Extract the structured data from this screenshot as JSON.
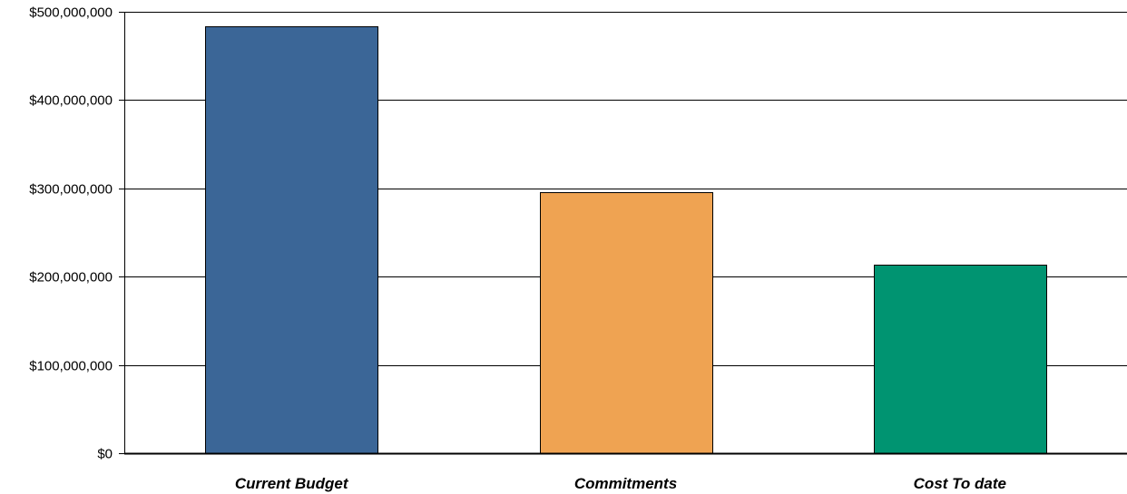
{
  "chart_data": {
    "type": "bar",
    "categories": [
      "Current Budget",
      "Commitments",
      "Cost To date"
    ],
    "values": [
      484000000,
      296000000,
      214000000
    ],
    "colors": [
      "#3b6697",
      "#efa352",
      "#009471"
    ],
    "ylim": [
      0,
      500000000
    ],
    "yticks": [
      0,
      100000000,
      200000000,
      300000000,
      400000000,
      500000000
    ],
    "ytick_labels": [
      "$0",
      "$100,000,000",
      "$200,000,000",
      "$300,000,000",
      "$400,000,000",
      "$500,000,000"
    ],
    "grid": true,
    "legend": "none"
  }
}
